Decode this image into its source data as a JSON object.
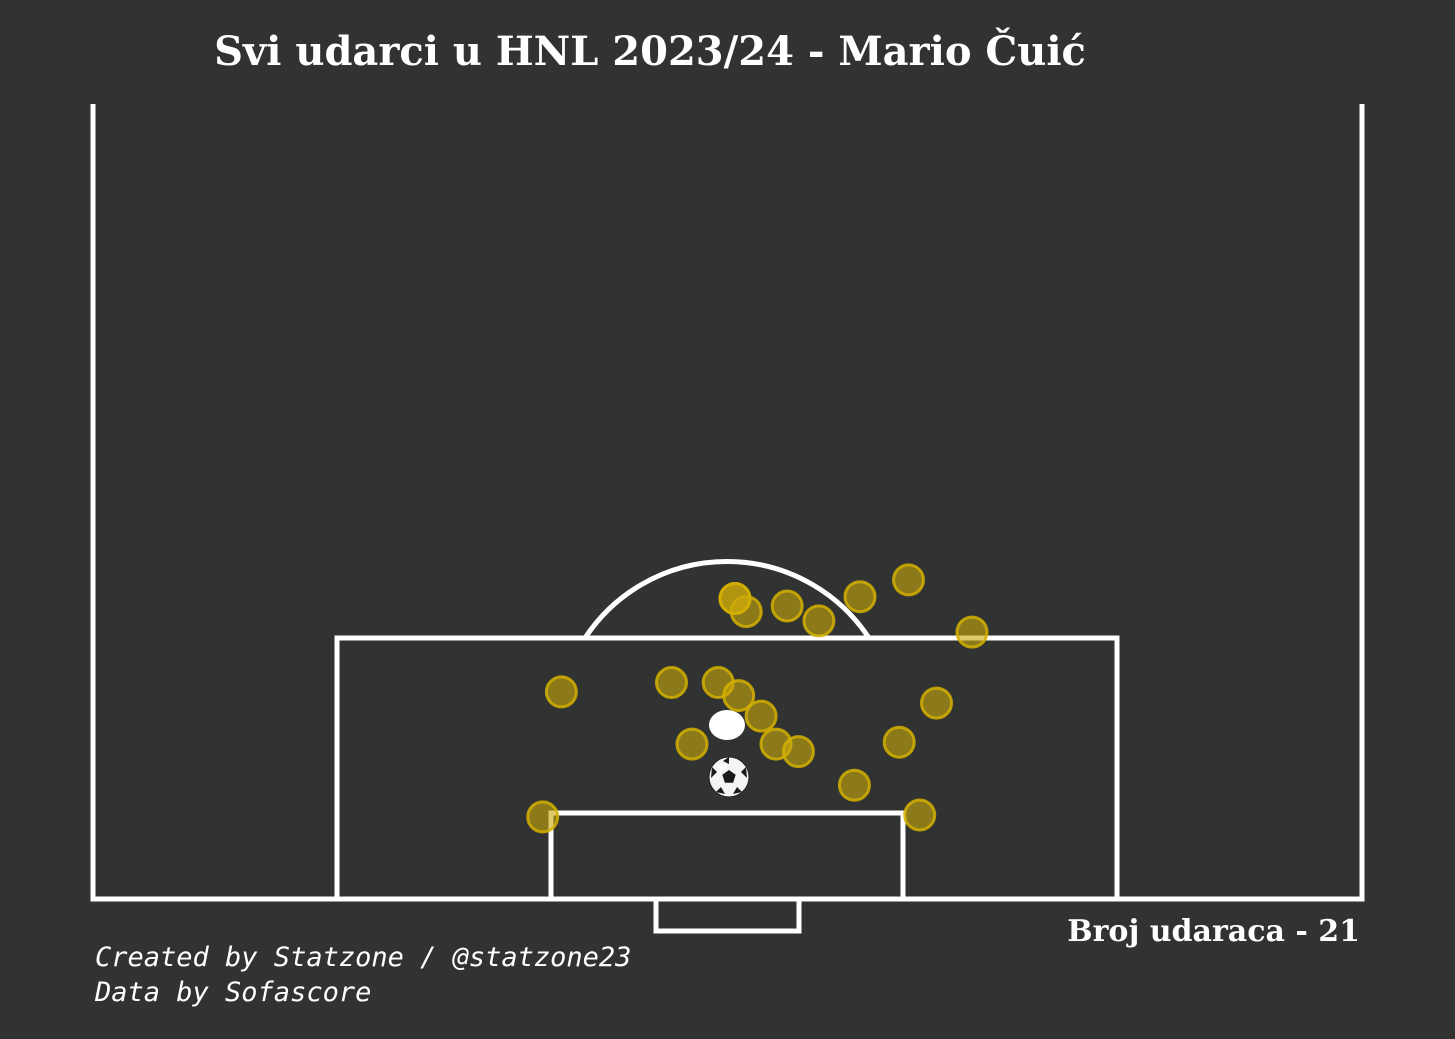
{
  "title": "Svi udarci u HNL 2023/24 - Mario Čuić",
  "shot_count_label": "Broj udaraca - 21",
  "credits": {
    "created_by": "Created by Statzone / @statzone23",
    "data_by": "Data by Sofascore"
  },
  "colors": {
    "background": "#313332",
    "pitch_lines": "#ffffff",
    "shot_fill": "#c9a80a",
    "shot_edge": "#d4b000"
  },
  "chart_data": {
    "type": "scatter",
    "title": "Svi udarci u HNL 2023/24 - Mario Čuić",
    "xlabel": "",
    "ylabel": "",
    "xlim": [
      0,
      68
    ],
    "ylim": [
      0,
      42.5
    ],
    "grid": false,
    "total_shots": 21,
    "shots": [
      {
        "x": 34.4,
        "y": 16.1
      },
      {
        "x": 35.0,
        "y": 15.4
      },
      {
        "x": 37.2,
        "y": 15.7
      },
      {
        "x": 38.9,
        "y": 14.9
      },
      {
        "x": 41.1,
        "y": 16.2
      },
      {
        "x": 43.7,
        "y": 17.1
      },
      {
        "x": 47.1,
        "y": 14.3
      },
      {
        "x": 25.1,
        "y": 11.1
      },
      {
        "x": 31.0,
        "y": 11.6
      },
      {
        "x": 33.5,
        "y": 11.6
      },
      {
        "x": 34.6,
        "y": 10.9
      },
      {
        "x": 35.8,
        "y": 9.8
      },
      {
        "x": 45.2,
        "y": 10.5
      },
      {
        "x": 32.1,
        "y": 8.3
      },
      {
        "x": 36.6,
        "y": 8.3
      },
      {
        "x": 37.8,
        "y": 7.9
      },
      {
        "x": 43.2,
        "y": 8.4
      },
      {
        "x": 40.8,
        "y": 6.1
      },
      {
        "x": 24.1,
        "y": 4.4
      },
      {
        "x": 44.3,
        "y": 4.5
      },
      {
        "x": 34.4,
        "y": 16.1
      }
    ]
  }
}
